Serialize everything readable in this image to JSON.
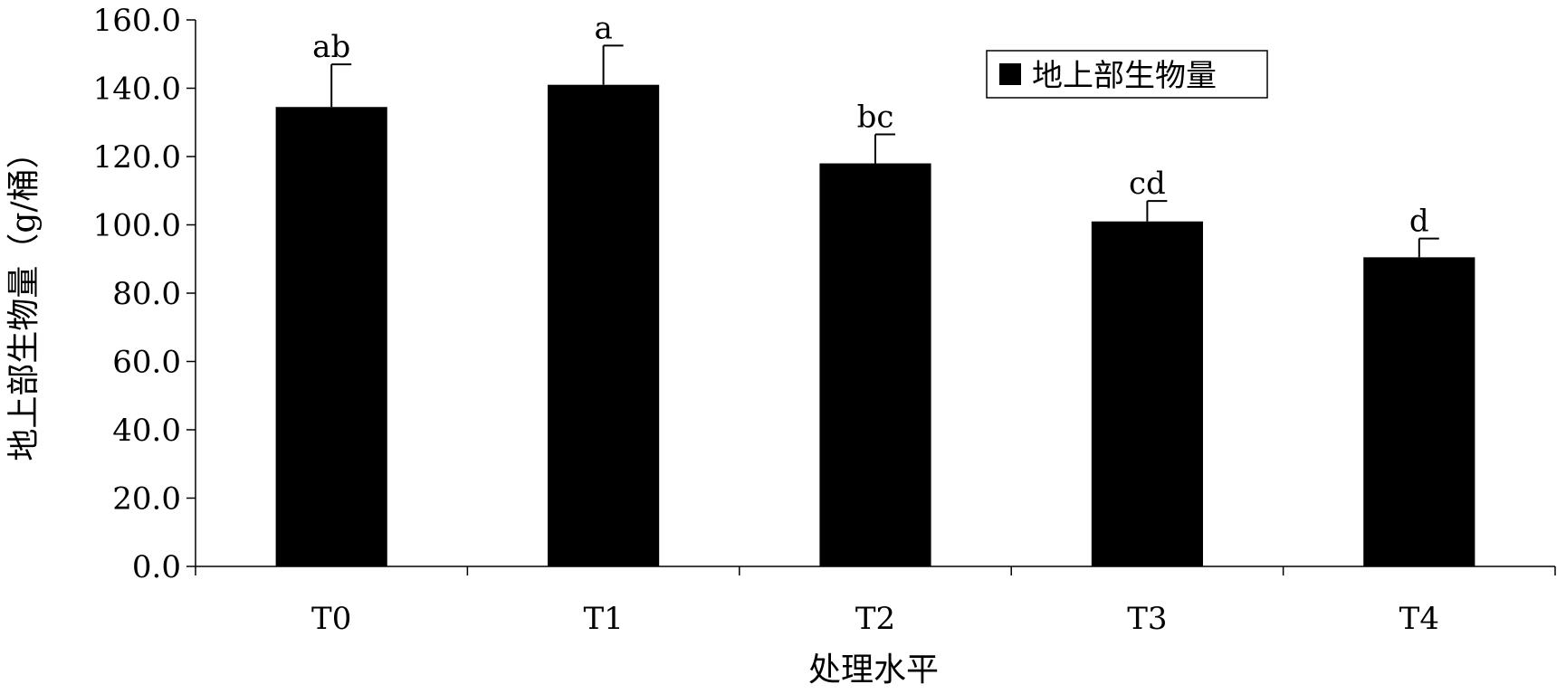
{
  "chart_data": {
    "type": "bar",
    "title": "",
    "xlabel": "处理水平",
    "ylabel": "地上部生物量（g/桶）",
    "categories": [
      "T0",
      "T1",
      "T2",
      "T3",
      "T4"
    ],
    "series": [
      {
        "name": "地上部生物量",
        "color": "#000000",
        "values": [
          134.5,
          141.0,
          118.0,
          101.0,
          90.5
        ],
        "error": [
          12.5,
          11.5,
          8.5,
          6.0,
          5.5
        ],
        "significance": [
          "ab",
          "a",
          "bc",
          "cd",
          "d"
        ]
      }
    ],
    "ylim": [
      0,
      160
    ],
    "yticks": [
      "0.0",
      "20.0",
      "40.0",
      "60.0",
      "80.0",
      "100.0",
      "120.0",
      "140.0",
      "160.0"
    ],
    "grid": false,
    "legend_position": "top-right"
  }
}
